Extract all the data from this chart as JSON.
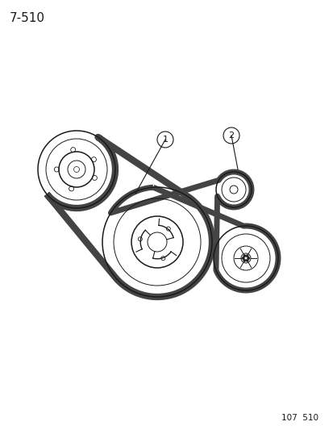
{
  "title": "7-510",
  "footer": "107  510",
  "bg": "#ffffff",
  "lc": "#1a1a1a",
  "fig_w": 4.14,
  "fig_h": 5.33,
  "dpi": 100,
  "label1": "1",
  "label2": "2",
  "pulleys": {
    "ul": {
      "ix": 95,
      "iy": 210,
      "r_outer": 48,
      "r_rim": 38,
      "r_inner": 22,
      "r_hub": 11
    },
    "crank": {
      "ix": 195,
      "iy": 300,
      "r_outer": 68,
      "r_rim": 54,
      "r_inner": 32,
      "r_hub": 12
    },
    "idler": {
      "ix": 290,
      "iy": 235,
      "r_outer": 22,
      "r_rim": 15,
      "r_hub": 5
    },
    "lr": {
      "ix": 305,
      "iy": 320,
      "r_outer": 40,
      "r_rim": 30,
      "r_inner": 15,
      "r_hub": 6
    }
  },
  "belt1_lw": 6,
  "belt2_lw": 5,
  "belt_color": "#444444"
}
